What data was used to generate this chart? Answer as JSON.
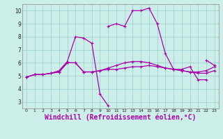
{
  "bg_color": "#cceee8",
  "line_color": "#aa00aa",
  "grid_color": "#99cccc",
  "xlabel": "Windchill (Refroidissement éolien,°C)",
  "xlabel_fontsize": 7,
  "xlim": [
    -0.5,
    23.5
  ],
  "ylim": [
    2.5,
    10.5
  ],
  "xticks": [
    0,
    1,
    2,
    3,
    4,
    5,
    6,
    7,
    8,
    9,
    10,
    11,
    12,
    13,
    14,
    15,
    16,
    17,
    18,
    19,
    20,
    21,
    22,
    23
  ],
  "yticks": [
    3,
    4,
    5,
    6,
    7,
    8,
    9,
    10
  ],
  "series": [
    [
      4.9,
      5.1,
      5.1,
      5.2,
      5.3,
      6.0,
      6.0,
      5.3,
      5.3,
      5.4,
      5.5,
      5.5,
      5.6,
      5.7,
      5.7,
      5.8,
      5.7,
      5.6,
      5.5,
      5.4,
      5.3,
      5.2,
      5.2,
      5.4
    ],
    [
      4.9,
      5.1,
      5.1,
      5.2,
      5.3,
      6.0,
      6.0,
      5.3,
      5.3,
      5.4,
      5.6,
      5.8,
      6.0,
      6.1,
      6.1,
      6.0,
      5.8,
      5.6,
      5.5,
      5.4,
      5.3,
      5.3,
      5.4,
      5.7
    ],
    [
      4.9,
      5.1,
      5.1,
      5.2,
      5.4,
      6.1,
      8.0,
      7.9,
      7.5,
      3.6,
      2.7,
      null,
      null,
      null,
      null,
      null,
      null,
      null,
      null,
      null,
      null,
      null,
      null,
      null
    ],
    [
      null,
      null,
      null,
      null,
      null,
      null,
      null,
      null,
      null,
      null,
      8.8,
      9.0,
      8.8,
      10.0,
      10.0,
      10.2,
      9.0,
      6.7,
      5.5,
      5.5,
      5.7,
      4.7,
      4.7,
      null
    ],
    [
      null,
      null,
      null,
      null,
      null,
      null,
      null,
      null,
      null,
      null,
      null,
      null,
      null,
      null,
      null,
      null,
      null,
      null,
      null,
      null,
      null,
      null,
      6.2,
      5.8
    ]
  ]
}
